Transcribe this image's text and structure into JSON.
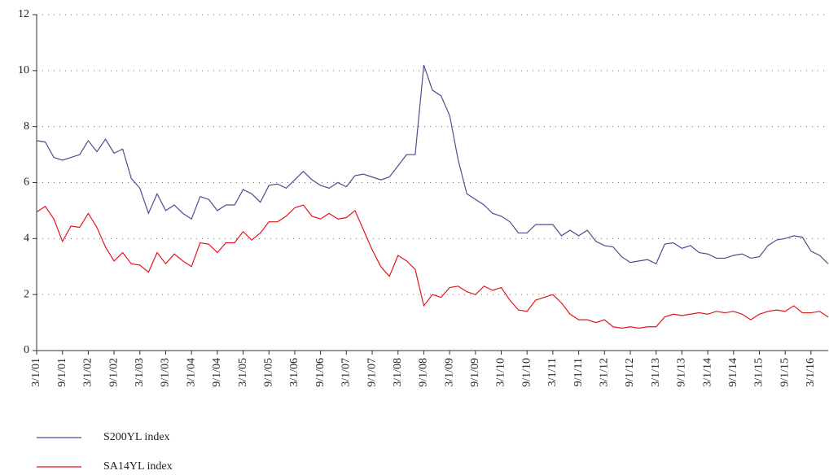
{
  "chart_data": {
    "type": "line",
    "categories": [
      "3/1/01",
      null,
      null,
      "9/1/01",
      null,
      null,
      "3/1/02",
      null,
      null,
      "9/1/02",
      null,
      null,
      "3/1/03",
      null,
      null,
      "9/1/03",
      null,
      null,
      "3/1/04",
      null,
      null,
      "9/1/04",
      null,
      null,
      "3/1/05",
      null,
      null,
      "9/1/05",
      null,
      null,
      "3/1/06",
      null,
      null,
      "9/1/06",
      null,
      null,
      "3/1/07",
      null,
      null,
      "9/1/07",
      null,
      null,
      "3/1/08",
      null,
      null,
      "9/1/08",
      null,
      null,
      "3/1/09",
      null,
      null,
      "9/1/09",
      null,
      null,
      "3/1/10",
      null,
      null,
      "9/1/10",
      null,
      null,
      "3/1/11",
      null,
      null,
      "9/1/11",
      null,
      null,
      "3/1/12",
      null,
      null,
      "9/1/12",
      null,
      null,
      "3/1/13",
      null,
      null,
      "9/1/13",
      null,
      null,
      "3/1/14",
      null,
      null,
      "9/1/14",
      null,
      null,
      "3/1/15",
      null,
      null,
      "9/1/15",
      null,
      null,
      "3/1/16",
      null,
      null
    ],
    "series": [
      {
        "name": "S200YL index",
        "color": "#4d4d8f",
        "values": [
          7.5,
          7.45,
          6.9,
          6.8,
          6.9,
          7.0,
          7.5,
          7.1,
          7.55,
          7.05,
          7.2,
          6.15,
          5.8,
          4.9,
          5.6,
          5.0,
          5.2,
          4.9,
          4.7,
          5.5,
          5.4,
          5.0,
          5.2,
          5.2,
          5.75,
          5.6,
          5.3,
          5.9,
          5.95,
          5.8,
          6.1,
          6.4,
          6.1,
          5.9,
          5.8,
          6.0,
          5.85,
          6.25,
          6.3,
          6.2,
          6.1,
          6.2,
          6.6,
          7.0,
          7.0,
          10.2,
          9.3,
          9.1,
          8.4,
          6.8,
          5.6,
          5.4,
          5.2,
          4.9,
          4.8,
          4.6,
          4.2,
          4.2,
          4.5,
          4.5,
          4.5,
          4.1,
          4.3,
          4.1,
          4.3,
          3.9,
          3.75,
          3.7,
          3.35,
          3.15,
          3.2,
          3.25,
          3.1,
          3.8,
          3.85,
          3.65,
          3.75,
          3.5,
          3.45,
          3.3,
          3.3,
          3.4,
          3.45,
          3.3,
          3.35,
          3.75,
          3.95,
          4.0,
          4.1,
          4.05,
          3.55,
          3.4,
          3.1
        ]
      },
      {
        "name": "SA14YL index",
        "color": "#e3141b",
        "values": [
          4.95,
          5.15,
          4.7,
          3.9,
          4.45,
          4.4,
          4.9,
          4.4,
          3.7,
          3.2,
          3.5,
          3.1,
          3.05,
          2.8,
          3.5,
          3.1,
          3.45,
          3.2,
          3.0,
          3.85,
          3.8,
          3.5,
          3.85,
          3.85,
          4.25,
          3.95,
          4.2,
          4.6,
          4.6,
          4.8,
          5.1,
          5.2,
          4.8,
          4.7,
          4.9,
          4.7,
          4.75,
          5.0,
          4.3,
          3.6,
          3.0,
          2.65,
          3.4,
          3.2,
          2.9,
          1.6,
          2.0,
          1.9,
          2.25,
          2.3,
          2.1,
          2.0,
          2.3,
          2.15,
          2.25,
          1.8,
          1.45,
          1.4,
          1.8,
          1.9,
          2.0,
          1.7,
          1.3,
          1.1,
          1.1,
          1.0,
          1.1,
          0.85,
          0.8,
          0.85,
          0.8,
          0.85,
          0.85,
          1.2,
          1.3,
          1.25,
          1.3,
          1.35,
          1.3,
          1.4,
          1.35,
          1.4,
          1.3,
          1.1,
          1.3,
          1.4,
          1.45,
          1.4,
          1.6,
          1.35,
          1.35,
          1.4,
          1.2
        ]
      }
    ],
    "ylim": [
      0,
      12
    ],
    "yticks": [
      0,
      2,
      4,
      6,
      8,
      10,
      12
    ],
    "grid": true
  }
}
